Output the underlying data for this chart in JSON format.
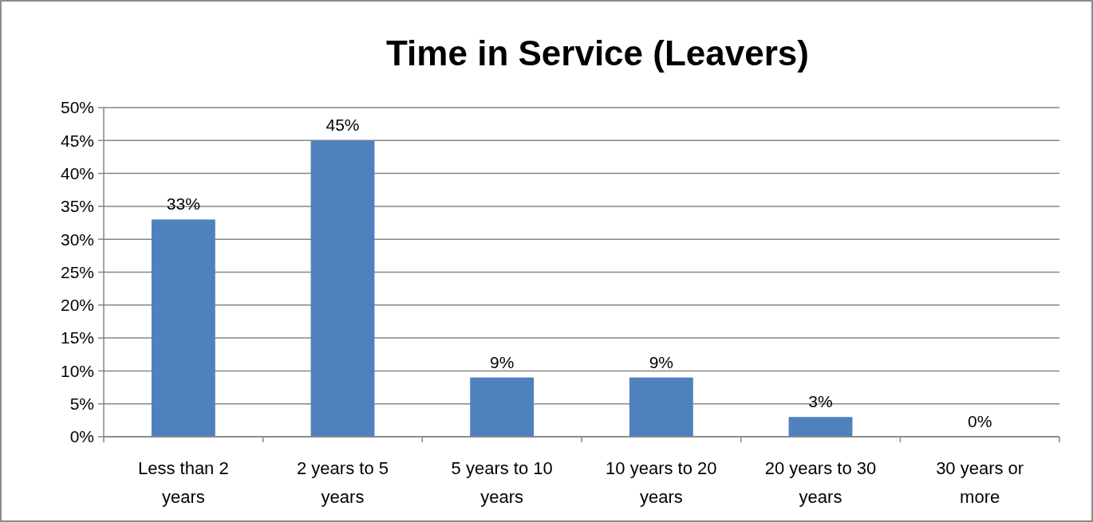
{
  "chart_data": {
    "type": "bar",
    "title": "Time in Service (Leavers)",
    "categories": [
      "Less than 2 years",
      "2 years to 5 years",
      "5 years to 10 years",
      "10 years to 20 years",
      "20 years to 30 years",
      "30 years or more"
    ],
    "values": [
      33,
      45,
      9,
      9,
      3,
      0
    ],
    "value_labels": [
      "33%",
      "45%",
      "9%",
      "9%",
      "3%",
      "0%"
    ],
    "color": "#4f81bd",
    "ylim": [
      0,
      50
    ],
    "yticks": [
      {
        "value": 0,
        "label": "0%"
      },
      {
        "value": 5,
        "label": "5%"
      },
      {
        "value": 10,
        "label": "10%"
      },
      {
        "value": 15,
        "label": "15%"
      },
      {
        "value": 20,
        "label": "20%"
      },
      {
        "value": 25,
        "label": "25%"
      },
      {
        "value": 30,
        "label": "30%"
      },
      {
        "value": 35,
        "label": "35%"
      },
      {
        "value": 40,
        "label": "40%"
      },
      {
        "value": 45,
        "label": "45%"
      },
      {
        "value": 50,
        "label": "50%"
      }
    ],
    "grid": "y"
  }
}
